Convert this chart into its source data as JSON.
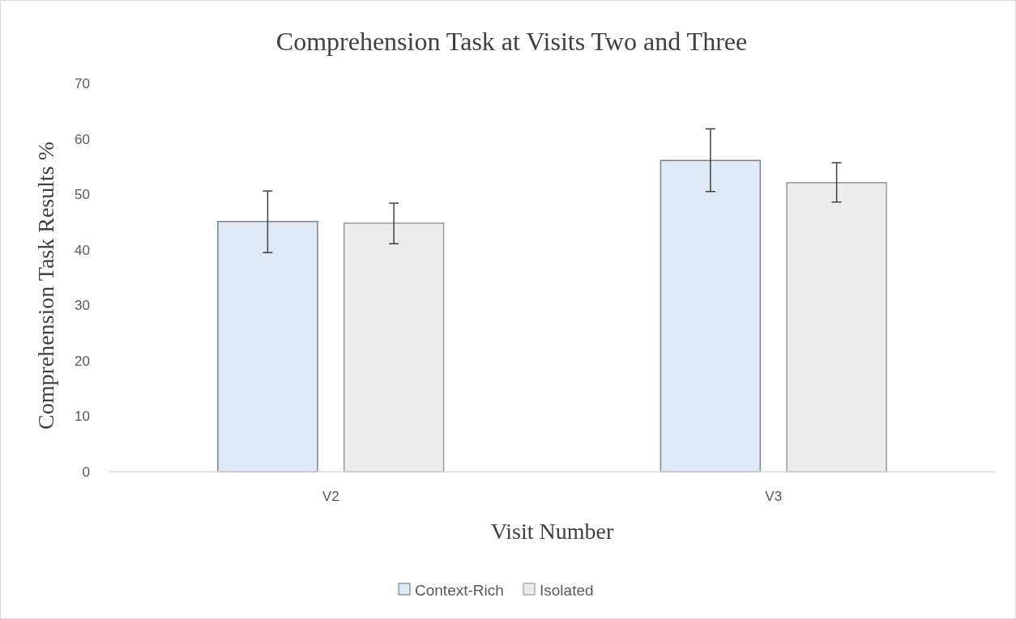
{
  "chart_data": {
    "type": "bar",
    "title": "Comprehension Task at Visits Two and Three",
    "xlabel": "Visit Number",
    "ylabel": "Comprehension Task Results %",
    "categories": [
      "V2",
      "V3"
    ],
    "series": [
      {
        "name": "Context-Rich",
        "color": "#dee9f5",
        "values": [
          45.1,
          56.1
        ],
        "errors": [
          [
            39.5,
            50.6
          ],
          [
            50.5,
            61.8
          ]
        ]
      },
      {
        "name": "Isolated",
        "color": "#ececec",
        "values": [
          44.8,
          52.1
        ],
        "errors": [
          [
            41.1,
            48.4
          ],
          [
            48.6,
            55.7
          ]
        ]
      }
    ],
    "ylim": [
      0,
      70
    ],
    "yticks": [
      0,
      10,
      20,
      30,
      40,
      50,
      60,
      70
    ],
    "grid": false,
    "legend": "bottom"
  }
}
